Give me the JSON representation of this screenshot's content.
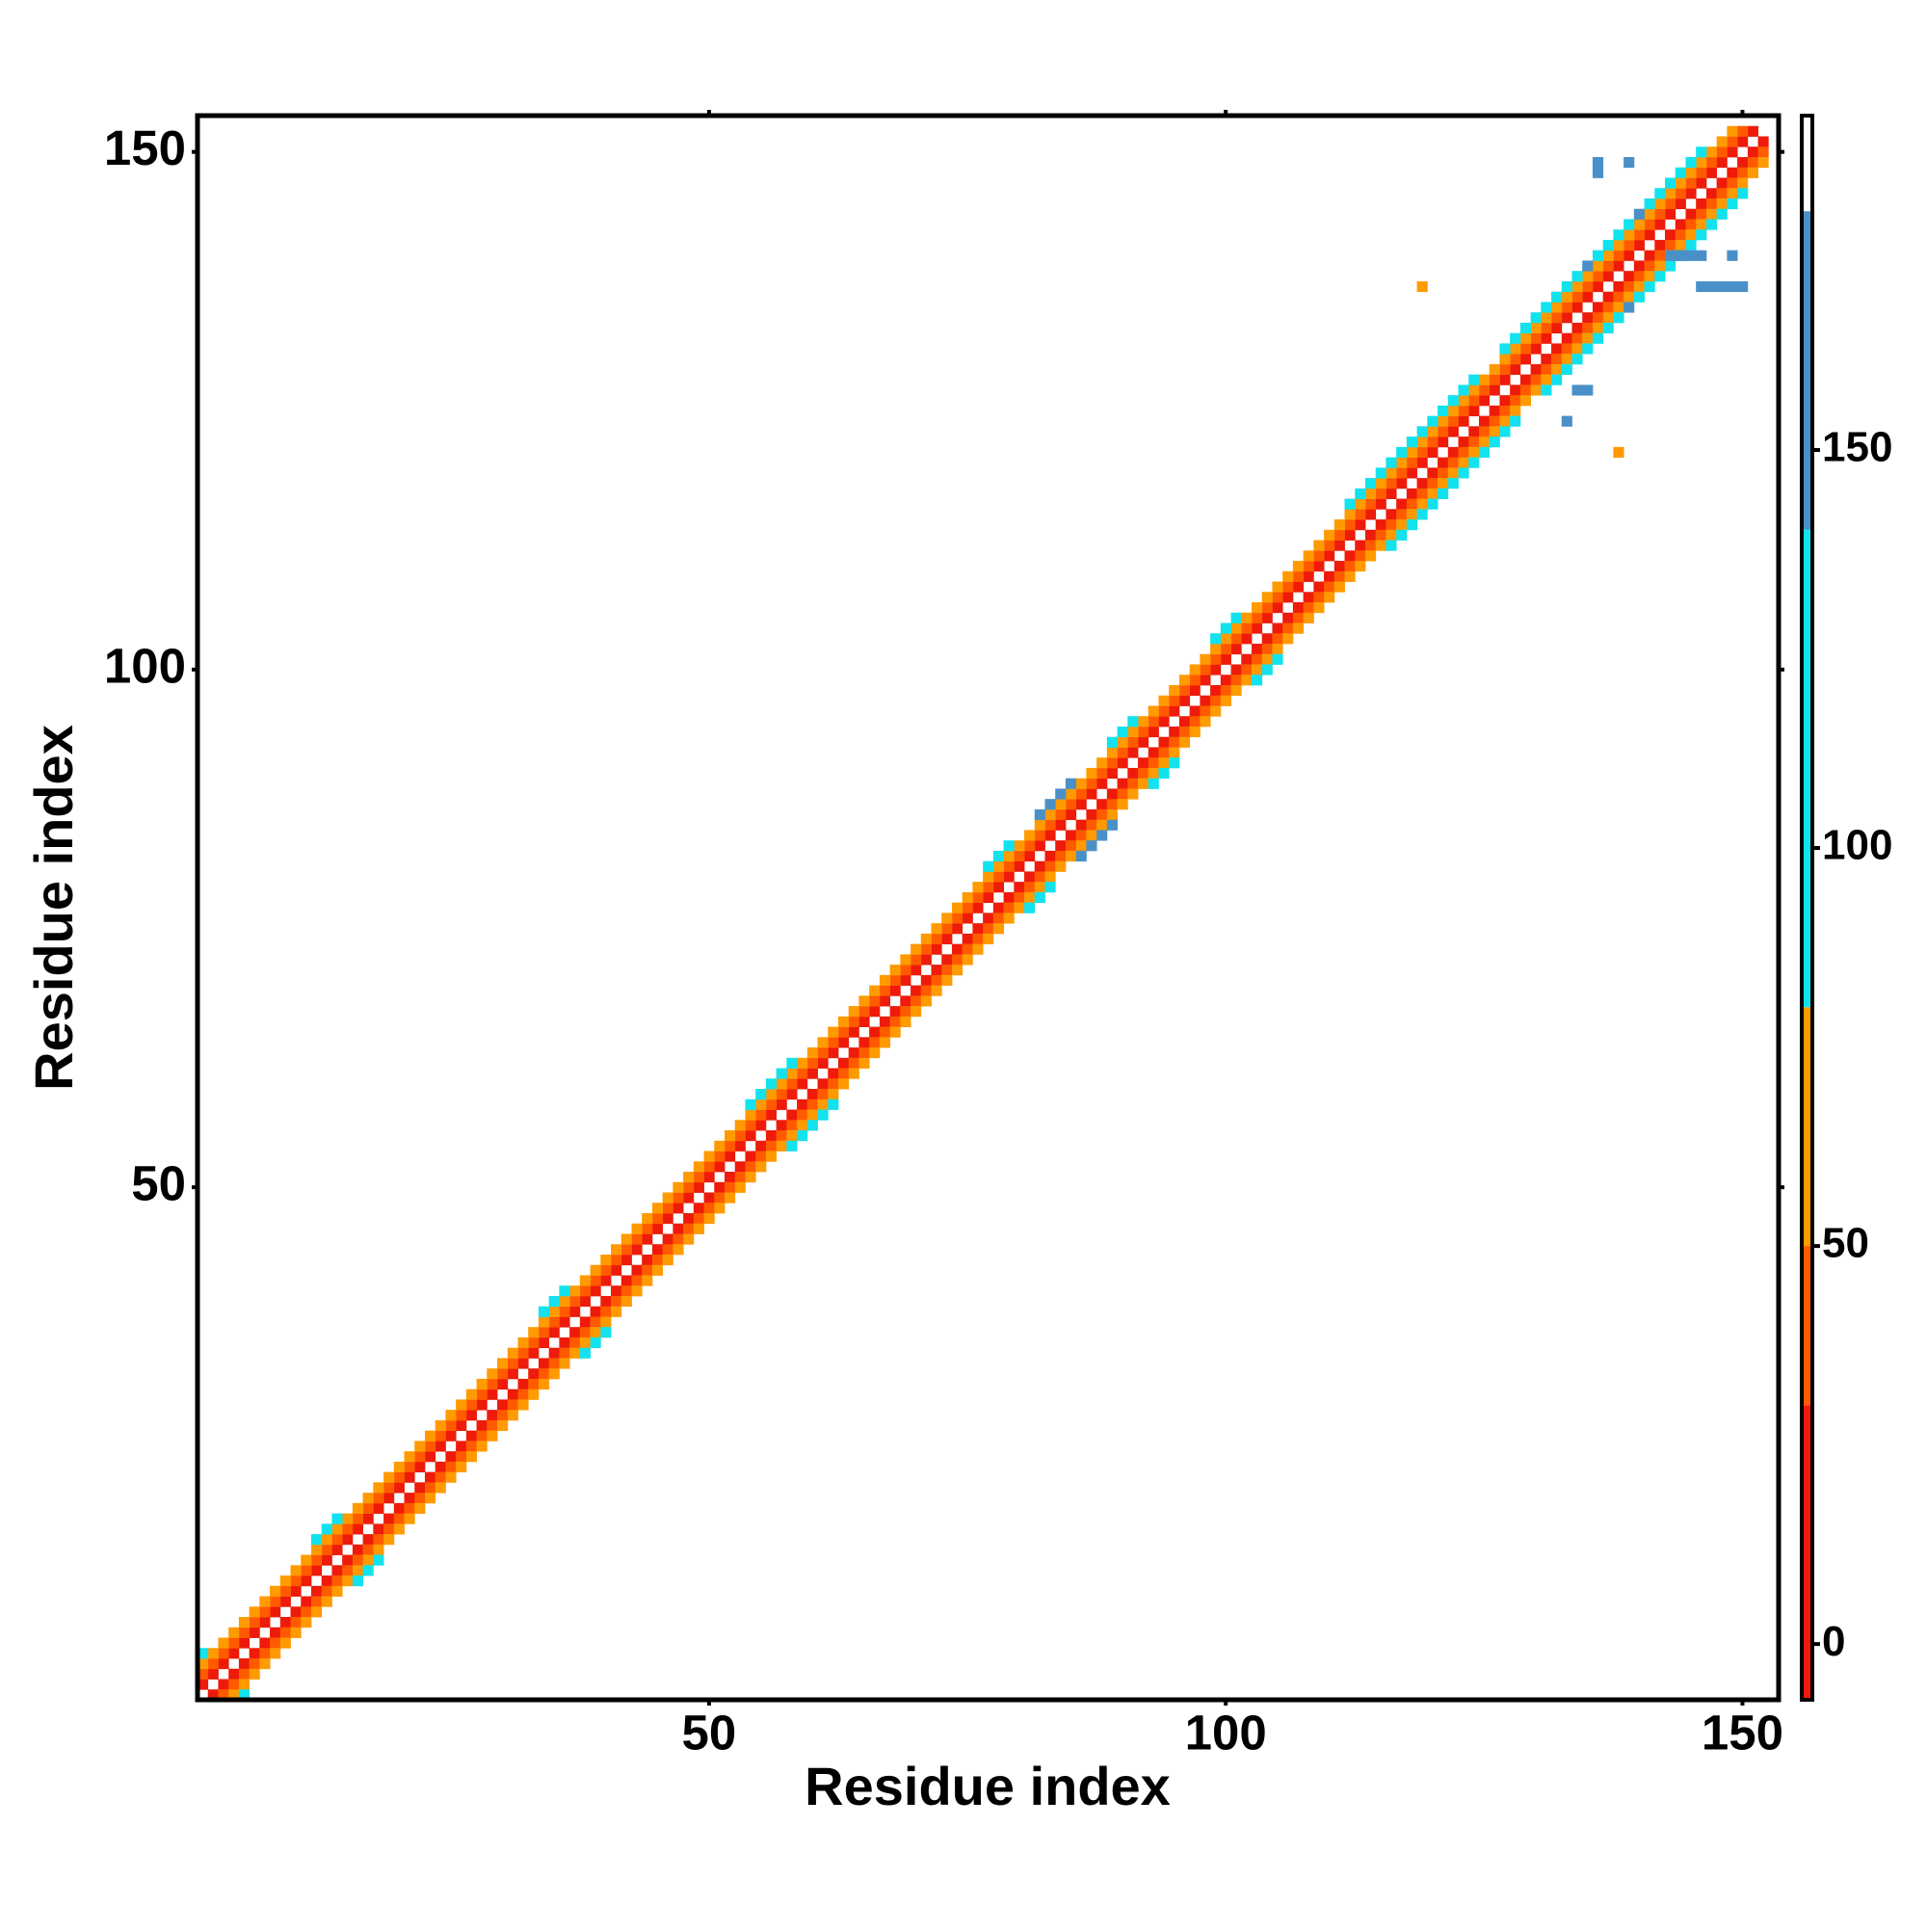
{
  "chart_data": {
    "type": "heatmap",
    "x_label": "Residue index",
    "y_label": "Residue index",
    "xlim": [
      0.5,
      153.5
    ],
    "ylim": [
      0.5,
      153.5
    ],
    "xticks": [
      50,
      100,
      150
    ],
    "yticks": [
      50,
      100,
      150
    ],
    "colorbar_lim": [
      -7,
      192
    ],
    "colorbar_ticks": [
      0,
      50,
      100,
      150
    ],
    "color_scale": [
      {
        "max": 30,
        "color": "#ee1a0a"
      },
      {
        "max": 50,
        "color": "#ff5a00"
      },
      {
        "max": 80,
        "color": "#ff9a00"
      },
      {
        "max": 140,
        "color": "#12e2ee"
      },
      {
        "max": 180,
        "color": "#4a90c8"
      },
      {
        "max": 192,
        "color": "#ffffff"
      }
    ],
    "diagonals": [
      {
        "offset": 1,
        "values": [
          12,
          8,
          15,
          20,
          6,
          10,
          14,
          9,
          18,
          11,
          7,
          13,
          16,
          5,
          19,
          10,
          8,
          12,
          17,
          9,
          14,
          6,
          11,
          20,
          13,
          8,
          16,
          10,
          7,
          18,
          12,
          9,
          15,
          11,
          6,
          14,
          19,
          8,
          13,
          10,
          17,
          7,
          12,
          9,
          16,
          11,
          5,
          14,
          18,
          10,
          8,
          13,
          15,
          9,
          12,
          20,
          7,
          11,
          16,
          10,
          14,
          8,
          12,
          17,
          9,
          13,
          6,
          11,
          15,
          10,
          18,
          8,
          12,
          14,
          9,
          16,
          7,
          11,
          13,
          10,
          15,
          9,
          12,
          18,
          8,
          11,
          14,
          10,
          6,
          13,
          17,
          9,
          12,
          15,
          8,
          11,
          19,
          10,
          13,
          7,
          14,
          9,
          12,
          16,
          8,
          11,
          13,
          10,
          18,
          9,
          12,
          15,
          7,
          11,
          14,
          10,
          16,
          8,
          13,
          9,
          12,
          17,
          10,
          14,
          8,
          11,
          15,
          9,
          13,
          6,
          12,
          16,
          10,
          14,
          9,
          11,
          18,
          8,
          13,
          10,
          15,
          9,
          12,
          14,
          8,
          11,
          17,
          10,
          13,
          9,
          12
        ]
      },
      {
        "offset": 2,
        "values": [
          38,
          42,
          35,
          45,
          40,
          33,
          47,
          36,
          41,
          39,
          44,
          37,
          32,
          46,
          40,
          35,
          43,
          38,
          48,
          36,
          41,
          34,
          45,
          39,
          42,
          37,
          33,
          47,
          40,
          36,
          44,
          38,
          35,
          46,
          41,
          39,
          43,
          34,
          48,
          37,
          40,
          45,
          36,
          42,
          38,
          33,
          47,
          41,
          39,
          44,
          35,
          43,
          37,
          46,
          40,
          34,
          42,
          38,
          45,
          36,
          41,
          39,
          33,
          47,
          43,
          37,
          44,
          35,
          40,
          46,
          38,
          42,
          36,
          45,
          39,
          34,
          41,
          47,
          37,
          43,
          40,
          35,
          44,
          38,
          46,
          36,
          42,
          39,
          33,
          45,
          41,
          37,
          43,
          48,
          36,
          40,
          44,
          38,
          35,
          42,
          46,
          39,
          37,
          41,
          34,
          45,
          40,
          43,
          38,
          36,
          47,
          42,
          39,
          44,
          35,
          41,
          37,
          46,
          40,
          33,
          43,
          38,
          45,
          36,
          42,
          39,
          44,
          34,
          41,
          47,
          37,
          40,
          43,
          38,
          46,
          35,
          42,
          39,
          45,
          36,
          41,
          44,
          37,
          40,
          48,
          38,
          43,
          35,
          42,
          39
        ]
      },
      {
        "offset": 3,
        "values": [
          62,
          55,
          70,
          58,
          66,
          73,
          52,
          64,
          68,
          57,
          75,
          61,
          54,
          69,
          63,
          72,
          56,
          67,
          59,
          74,
          65,
          53,
          71,
          60,
          68,
          57,
          76,
          63,
          55,
          70,
          62,
          66,
          58,
          73,
          54,
          69,
          61,
          75,
          64,
          56,
          71,
          59,
          67,
          52,
          74,
          63,
          68,
          57,
          70,
          60,
          65,
          55,
          72,
          62,
          58,
          77,
          64,
          53,
          69,
          61,
          73,
          56,
          66,
          60,
          71,
          54,
          67,
          63,
          75,
          58,
          62,
          70,
          57,
          65,
          68,
          55,
          73,
          61,
          59,
          66,
          72,
          56,
          64,
          69,
          53,
          74,
          60,
          67,
          57,
          71,
          63,
          58,
          76,
          65,
          55,
          70,
          61,
          68,
          54,
          73,
          62,
          66,
          59,
          72,
          57,
          64,
          69,
          56,
          75,
          60,
          67,
          53,
          71,
          63,
          58,
          74,
          65,
          55,
          70,
          61,
          68,
          57,
          73,
          62,
          66,
          59,
          72,
          56,
          64,
          69,
          54,
          75,
          60,
          67,
          58,
          71,
          63,
          57,
          74,
          65,
          55,
          70,
          61,
          68,
          59,
          73,
          62,
          66,
          64
        ]
      },
      {
        "offset": 4,
        "values": [
          95,
          null,
          null,
          null,
          null,
          null,
          null,
          null,
          null,
          null,
          null,
          92,
          98,
          90,
          null,
          null,
          null,
          null,
          null,
          null,
          null,
          null,
          null,
          null,
          null,
          null,
          null,
          null,
          null,
          null,
          null,
          null,
          null,
          94,
          97,
          91,
          null,
          null,
          null,
          null,
          null,
          null,
          null,
          null,
          null,
          null,
          null,
          null,
          null,
          null,
          null,
          null,
          null,
          93,
          96,
          99,
          92,
          95,
          null,
          null,
          null,
          null,
          null,
          null,
          null,
          null,
          null,
          null,
          null,
          null,
          null,
          null,
          null,
          null,
          null,
          null,
          94,
          97,
          91,
          null,
          null,
          148,
          152,
          150,
          146,
          null,
          null,
          null,
          96,
          93,
          98,
          null,
          null,
          null,
          null,
          null,
          null,
          null,
          95,
          92,
          97,
          null,
          null,
          null,
          null,
          null,
          null,
          null,
          null,
          null,
          null,
          95,
          98,
          92,
          96,
          99,
          93,
          97,
          94,
          100,
          96,
          92,
          98,
          95,
          null,
          null,
          93,
          97,
          91,
          99,
          95,
          98,
          92,
          96,
          150,
          94,
          99,
          93,
          97,
          145,
          95,
          92,
          98,
          94,
          96,
          93,
          null,
          null
        ]
      }
    ],
    "cells": {
      "x": [
        119,
        138,
        136,
        136,
        139,
        146,
        147,
        148,
        149,
        150,
        143,
        144,
        145,
        146,
        149,
        134,
        135,
        133
      ],
      "y": [
        137,
        121,
        149,
        148,
        149,
        137,
        137,
        137,
        137,
        137,
        140,
        140,
        140,
        140,
        140,
        127,
        127,
        124
      ],
      "values": [
        65,
        65,
        150,
        150,
        150,
        145,
        150,
        145,
        150,
        150,
        145,
        150,
        145,
        150,
        150,
        150,
        145,
        150
      ]
    }
  }
}
